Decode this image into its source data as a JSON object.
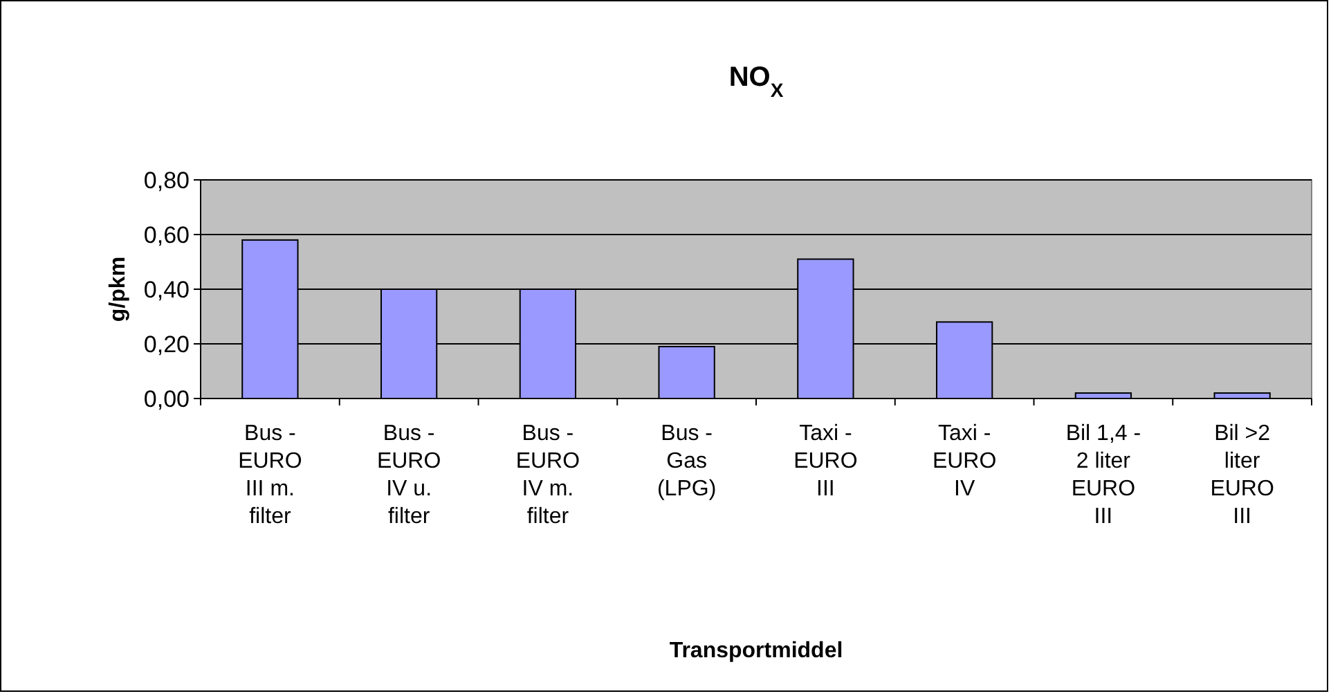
{
  "chart_data": {
    "type": "bar",
    "title": "NO$_{X}$",
    "xlabel": "Transportmiddel",
    "ylabel": "g/pkm",
    "categories": [
      "Bus - EURO III m. filter",
      "Bus - EURO IV u. filter",
      "Bus - EURO IV m. filter",
      "Bus - Gas (LPG)",
      "Taxi - EURO III",
      "Taxi - EURO IV",
      "Bil 1,4 - 2 liter EURO III",
      "Bil >2 liter EURO III"
    ],
    "values": [
      0.58,
      0.4,
      0.4,
      0.19,
      0.51,
      0.28,
      0.02,
      0.02
    ],
    "color": "#9999ff",
    "ylim": [
      0,
      0.8
    ],
    "yticks": [
      {
        "value": 0,
        "label": "0,00"
      },
      {
        "value": 0.2,
        "label": "0,20"
      },
      {
        "value": 0.4,
        "label": "0,40"
      },
      {
        "value": 0.6,
        "label": "0,60"
      },
      {
        "value": 0.8,
        "label": "0,80"
      }
    ],
    "grid": "y"
  }
}
